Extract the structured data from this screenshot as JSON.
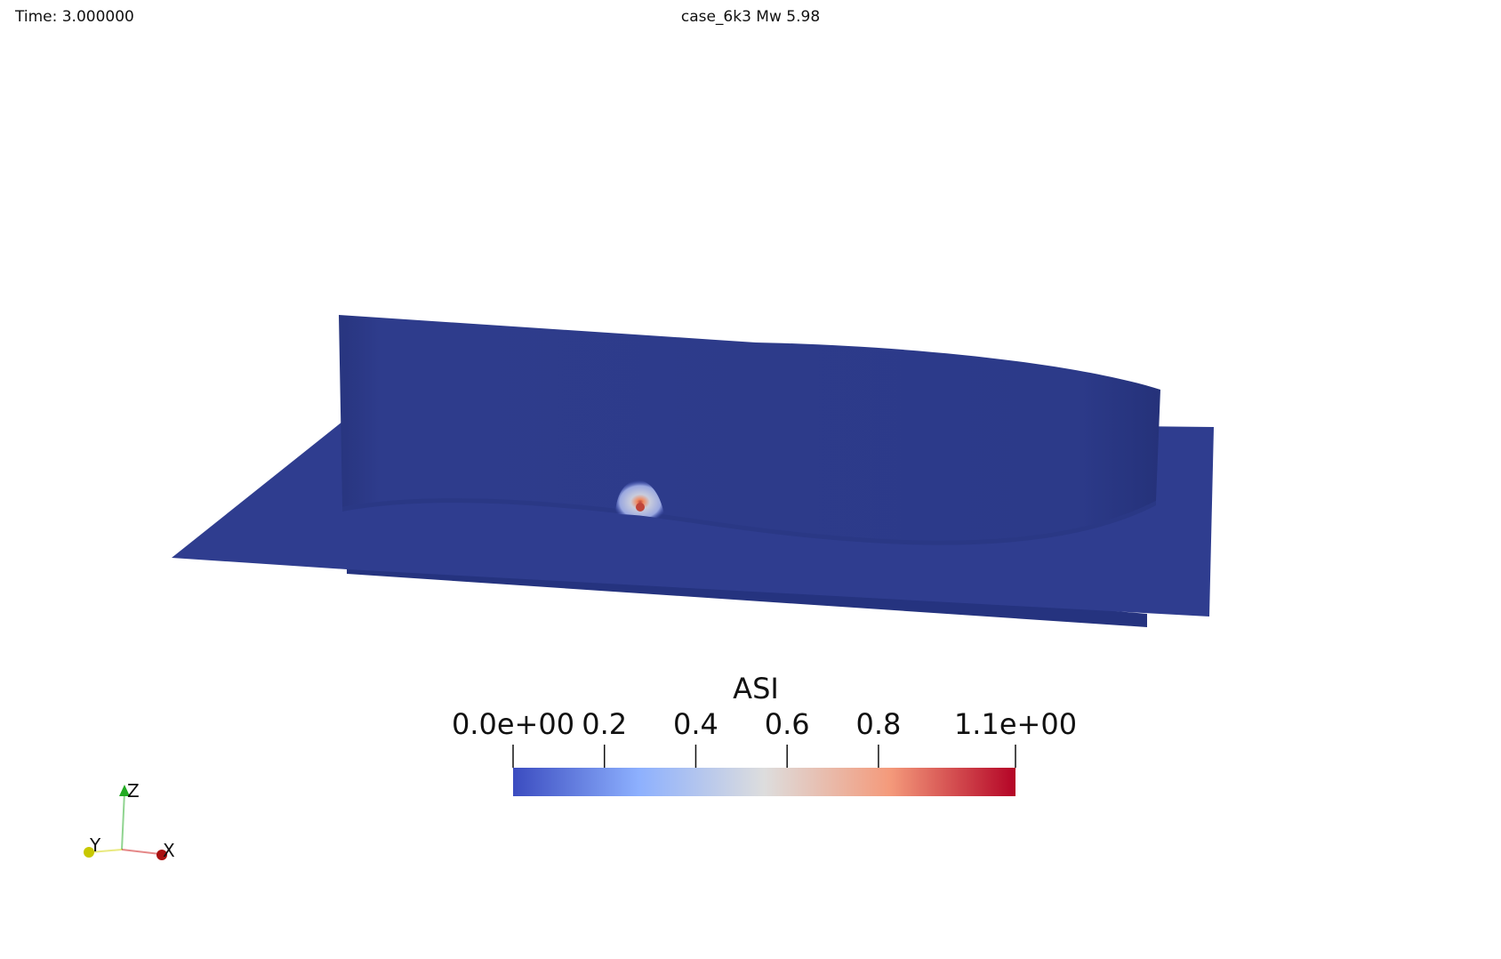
{
  "header": {
    "time_text": "Time: 3.000000",
    "title": "case_6k3 Mw 5.98"
  },
  "colorbar": {
    "title": "ASI",
    "range": [
      0.0,
      1.1
    ],
    "colormap": [
      "#3b4cc0",
      "#8db0fe",
      "#dddddd",
      "#f49a7b",
      "#b40426"
    ],
    "ticks": [
      {
        "value": 0.0,
        "label": "0.0e+00"
      },
      {
        "value": 0.2,
        "label": "0.2"
      },
      {
        "value": 0.4,
        "label": "0.4"
      },
      {
        "value": 0.6,
        "label": "0.6"
      },
      {
        "value": 0.8,
        "label": "0.8"
      },
      {
        "value": 1.1,
        "label": "1.1e+00"
      }
    ]
  },
  "orientation_axes": {
    "x_label": "X",
    "y_label": "Y",
    "z_label": "Z",
    "x_color": "#cc1111",
    "y_color": "#d4d400",
    "z_color": "#22aa22"
  },
  "scene": {
    "surface_color": "#2f3d8f",
    "wall_color": "#2b3987",
    "peak_color": "#f27a5a"
  }
}
